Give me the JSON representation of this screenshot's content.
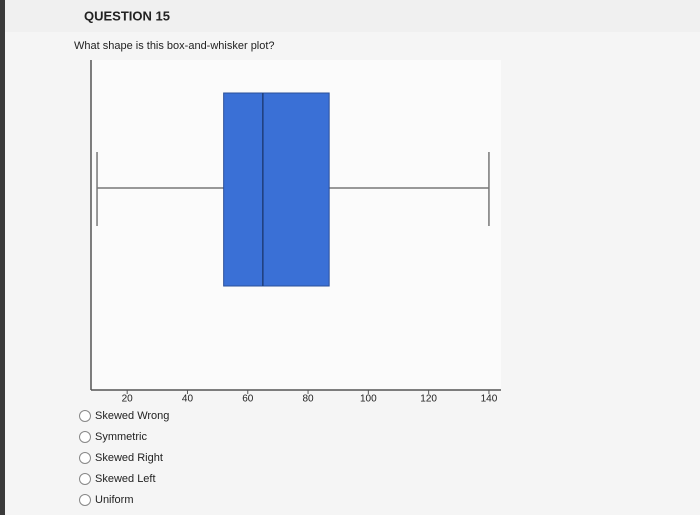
{
  "header": {
    "title": "QUESTION 15"
  },
  "question": "What shape is this box-and-whisker plot?",
  "chart_data": {
    "type": "box",
    "color": "#3a70d6",
    "boxes": [
      {
        "min": 10,
        "q1": 52,
        "median": 65,
        "q3": 87,
        "max": 140
      }
    ],
    "xlim": [
      8,
      144
    ],
    "xticks": [
      20,
      40,
      60,
      80,
      100,
      120,
      140
    ]
  },
  "options": [
    "Skewed Wrong",
    "Symmetric",
    "Skewed Right",
    "Skewed Left",
    "Uniform"
  ]
}
